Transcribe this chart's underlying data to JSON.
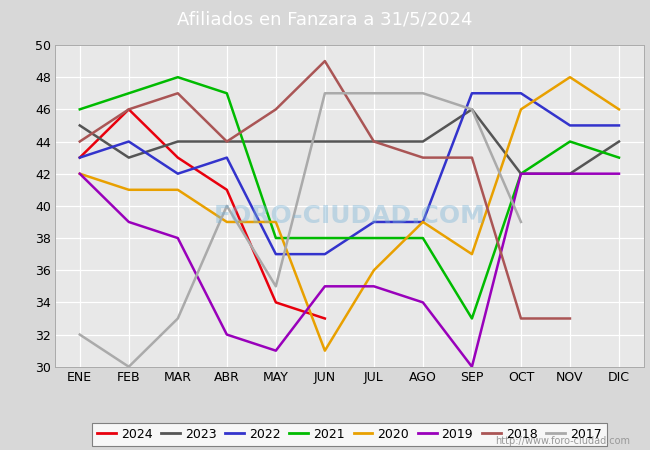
{
  "title": "Afiliados en Fanzara a 31/5/2024",
  "ylim": [
    30,
    50
  ],
  "yticks": [
    30,
    32,
    34,
    36,
    38,
    40,
    42,
    44,
    46,
    48,
    50
  ],
  "months": [
    "ENE",
    "FEB",
    "MAR",
    "ABR",
    "MAY",
    "JUN",
    "JUL",
    "AGO",
    "SEP",
    "OCT",
    "NOV",
    "DIC"
  ],
  "watermark_url": "http://www.foro-ciudad.com",
  "watermark_text": "FORO-CIUDAD.COM",
  "series": {
    "2024": {
      "color": "#e8000d",
      "data": [
        43,
        46,
        43,
        41,
        34,
        33,
        null,
        null,
        null,
        null,
        null,
        null
      ]
    },
    "2023": {
      "color": "#555555",
      "data": [
        45,
        43,
        44,
        44,
        44,
        44,
        44,
        44,
        46,
        42,
        42,
        44
      ]
    },
    "2022": {
      "color": "#3333cc",
      "data": [
        43,
        44,
        42,
        43,
        37,
        37,
        39,
        39,
        47,
        47,
        45,
        45
      ]
    },
    "2021": {
      "color": "#00bb00",
      "data": [
        46,
        47,
        48,
        47,
        38,
        38,
        38,
        38,
        33,
        42,
        44,
        43
      ]
    },
    "2020": {
      "color": "#e8a000",
      "data": [
        42,
        41,
        41,
        39,
        39,
        31,
        36,
        39,
        37,
        46,
        48,
        46
      ]
    },
    "2019": {
      "color": "#9900bb",
      "data": [
        42,
        39,
        38,
        32,
        31,
        35,
        35,
        34,
        30,
        42,
        42,
        42
      ]
    },
    "2018": {
      "color": "#aa5555",
      "data": [
        44,
        46,
        47,
        44,
        46,
        49,
        44,
        43,
        43,
        33,
        33,
        null
      ]
    },
    "2017": {
      "color": "#aaaaaa",
      "data": [
        32,
        30,
        33,
        40,
        35,
        47,
        47,
        47,
        46,
        39,
        null,
        null
      ]
    }
  },
  "legend_order": [
    "2024",
    "2023",
    "2022",
    "2021",
    "2020",
    "2019",
    "2018",
    "2017"
  ],
  "bg_color": "#d8d8d8",
  "plot_bg_color": "#e8e8e8",
  "title_bg": "#4d86c8",
  "title_color": "white",
  "title_fontsize": 13,
  "linewidth": 1.8,
  "grid_color": "white",
  "tick_fontsize": 9
}
